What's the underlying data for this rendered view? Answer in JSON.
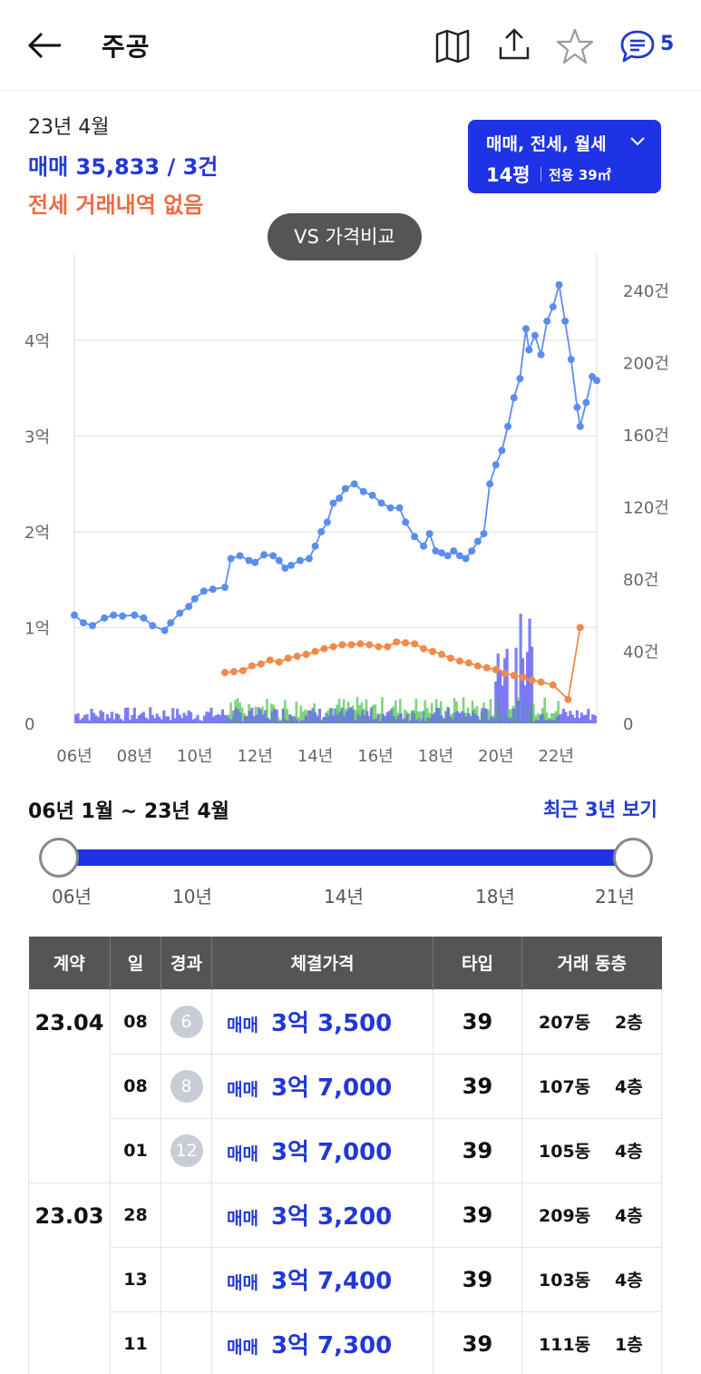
{
  "header": {
    "title": "주공",
    "comment_count": "5",
    "icons": [
      "back-arrow-icon",
      "map-icon",
      "share-icon",
      "star-icon",
      "chat-icon"
    ]
  },
  "summary": {
    "date": "23년 4월",
    "sale": "매매 35,833 / 3건",
    "jeonse": "전세 거래내역 없음"
  },
  "type_select": {
    "kinds": "매매, 전세, 월세",
    "pyeong": "14평",
    "area": "전용 39㎡"
  },
  "vs_button": "VS 가격비교",
  "colors": {
    "accent": "#1e32e6",
    "sale": "#5b8def",
    "jeonse": "#f08a4b",
    "volume_sale": "#6a6af0",
    "volume_jeonse": "#5cc95c"
  },
  "chart_data": {
    "type": "line",
    "x_ticks": [
      "06년",
      "08년",
      "10년",
      "12년",
      "14년",
      "16년",
      "18년",
      "20년",
      "22년"
    ],
    "y_left_ticks": [
      "0",
      "1억",
      "2억",
      "3억",
      "4억"
    ],
    "y_right_ticks": [
      "0",
      "40건",
      "80건",
      "120건",
      "160건",
      "200건",
      "240건"
    ],
    "y_left_range": [
      0,
      4.9
    ],
    "y_right_range": [
      0,
      260
    ],
    "x_range": [
      2006.0,
      2023.35
    ],
    "grid": true,
    "series": [
      {
        "kind": "sale_price",
        "unit": "억",
        "x": [
          2006.0,
          2006.3,
          2006.6,
          2007.0,
          2007.3,
          2007.6,
          2008.0,
          2008.3,
          2008.6,
          2009.0,
          2009.2,
          2009.5,
          2009.8,
          2010.0,
          2010.3,
          2010.6,
          2011.0,
          2011.2,
          2011.5,
          2011.8,
          2012.0,
          2012.3,
          2012.6,
          2012.8,
          2013.0,
          2013.2,
          2013.5,
          2013.8,
          2014.0,
          2014.2,
          2014.4,
          2014.6,
          2014.8,
          2015.0,
          2015.3,
          2015.6,
          2015.9,
          2016.2,
          2016.5,
          2016.8,
          2017.0,
          2017.3,
          2017.6,
          2017.8,
          2018.0,
          2018.2,
          2018.4,
          2018.6,
          2018.8,
          2019.0,
          2019.2,
          2019.4,
          2019.6,
          2019.8,
          2020.0,
          2020.2,
          2020.4,
          2020.6,
          2020.8,
          2021.0,
          2021.1,
          2021.3,
          2021.5,
          2021.7,
          2021.9,
          2022.1,
          2022.3,
          2022.5,
          2022.7,
          2022.8,
          2023.0,
          2023.2,
          2023.35
        ],
        "y": [
          1.13,
          1.05,
          1.02,
          1.1,
          1.13,
          1.12,
          1.13,
          1.1,
          1.02,
          0.97,
          1.05,
          1.15,
          1.22,
          1.3,
          1.38,
          1.4,
          1.42,
          1.72,
          1.75,
          1.7,
          1.68,
          1.76,
          1.75,
          1.7,
          1.62,
          1.65,
          1.7,
          1.72,
          1.85,
          2.0,
          2.1,
          2.3,
          2.35,
          2.45,
          2.5,
          2.42,
          2.38,
          2.3,
          2.25,
          2.25,
          2.1,
          1.95,
          1.85,
          1.98,
          1.8,
          1.78,
          1.75,
          1.8,
          1.75,
          1.72,
          1.8,
          1.9,
          1.98,
          2.5,
          2.7,
          2.85,
          3.1,
          3.4,
          3.6,
          4.12,
          3.9,
          4.05,
          3.85,
          4.2,
          4.35,
          4.58,
          4.2,
          3.8,
          3.3,
          3.1,
          3.35,
          3.62,
          3.58
        ]
      },
      {
        "kind": "jeonse_price",
        "unit": "억",
        "x": [
          2011.0,
          2011.3,
          2011.6,
          2011.9,
          2012.2,
          2012.5,
          2012.8,
          2013.1,
          2013.4,
          2013.7,
          2014.0,
          2014.3,
          2014.6,
          2014.9,
          2015.2,
          2015.5,
          2015.8,
          2016.1,
          2016.4,
          2016.7,
          2017.0,
          2017.3,
          2017.6,
          2017.9,
          2018.2,
          2018.5,
          2018.8,
          2019.1,
          2019.4,
          2019.7,
          2020.0,
          2020.3,
          2020.6,
          2020.9,
          2021.2,
          2021.5,
          2021.9,
          2022.4,
          2022.8
        ],
        "y": [
          0.53,
          0.54,
          0.55,
          0.6,
          0.62,
          0.66,
          0.64,
          0.68,
          0.7,
          0.72,
          0.75,
          0.78,
          0.8,
          0.82,
          0.82,
          0.83,
          0.82,
          0.8,
          0.8,
          0.85,
          0.84,
          0.83,
          0.78,
          0.75,
          0.72,
          0.68,
          0.65,
          0.63,
          0.6,
          0.58,
          0.56,
          0.52,
          0.5,
          0.48,
          0.45,
          0.43,
          0.4,
          0.25,
          1.0
        ]
      }
    ]
  },
  "range": {
    "label": "06년 1월 ~ 23년 4월",
    "recent_link": "최근 3년 보기",
    "ticks": [
      "06년",
      "10년",
      "14년",
      "18년",
      "21년"
    ],
    "start_fraction": 0.0,
    "end_fraction": 1.0
  },
  "table": {
    "headers": [
      "계약",
      "일",
      "경과",
      "체결가격",
      "타입",
      "거래 동층"
    ],
    "groups": [
      {
        "month": "23.04",
        "rows": [
          {
            "day": "08",
            "elapsed": "6",
            "type": "매매",
            "price": "3억 3,500",
            "size": "39",
            "dong": "207동",
            "floor": "2층"
          },
          {
            "day": "08",
            "elapsed": "8",
            "type": "매매",
            "price": "3억 7,000",
            "size": "39",
            "dong": "107동",
            "floor": "4층"
          },
          {
            "day": "01",
            "elapsed": "12",
            "type": "매매",
            "price": "3억 7,000",
            "size": "39",
            "dong": "105동",
            "floor": "4층"
          }
        ]
      },
      {
        "month": "23.03",
        "rows": [
          {
            "day": "28",
            "elapsed": "",
            "type": "매매",
            "price": "3억 3,200",
            "size": "39",
            "dong": "209동",
            "floor": "4층"
          },
          {
            "day": "13",
            "elapsed": "",
            "type": "매매",
            "price": "3억 7,400",
            "size": "39",
            "dong": "103동",
            "floor": "4층"
          },
          {
            "day": "11",
            "elapsed": "",
            "type": "매매",
            "price": "3억 7,300",
            "size": "39",
            "dong": "111동",
            "floor": "1층"
          }
        ]
      }
    ]
  }
}
